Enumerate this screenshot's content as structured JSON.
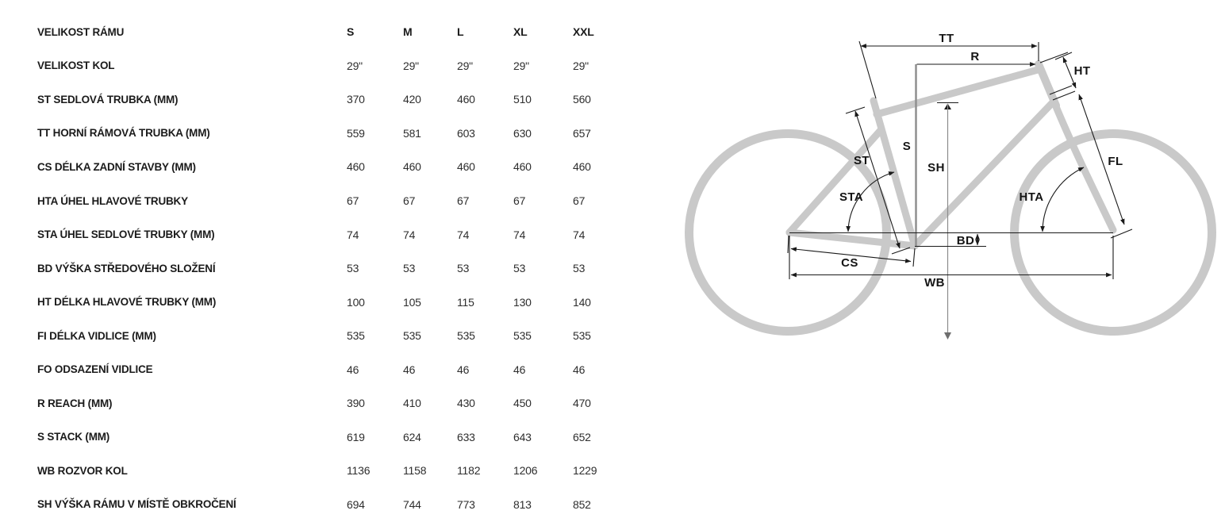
{
  "table": {
    "header_label": "VELIKOST RÁMU",
    "sizes": [
      "S",
      "M",
      "L",
      "XL",
      "XXL"
    ],
    "rows": [
      {
        "label": "VELIKOST KOL",
        "values": [
          "29\"",
          "29\"",
          "29\"",
          "29\"",
          "29\""
        ]
      },
      {
        "label": "ST SEDLOVÁ TRUBKA (MM)",
        "values": [
          "370",
          "420",
          "460",
          "510",
          "560"
        ]
      },
      {
        "label": "TT HORNÍ RÁMOVÁ TRUBKA (MM)",
        "values": [
          "559",
          "581",
          "603",
          "630",
          "657"
        ]
      },
      {
        "label": "CS DÉLKA ZADNÍ STAVBY (MM)",
        "values": [
          "460",
          "460",
          "460",
          "460",
          "460"
        ]
      },
      {
        "label": "HTA ÚHEL HLAVOVÉ TRUBKY",
        "values": [
          "67",
          "67",
          "67",
          "67",
          "67"
        ]
      },
      {
        "label": "STA ÚHEL SEDLOVÉ TRUBKY (MM)",
        "values": [
          "74",
          "74",
          "74",
          "74",
          "74"
        ]
      },
      {
        "label": "BD VÝŠKA STŘEDOVÉHO SLOŽENÍ",
        "values": [
          "53",
          "53",
          "53",
          "53",
          "53"
        ]
      },
      {
        "label": "HT DÉLKA HLAVOVÉ TRUBKY (MM)",
        "values": [
          "100",
          "105",
          "115",
          "130",
          "140"
        ]
      },
      {
        "label": "FI DÉLKA VIDLICE (MM)",
        "values": [
          "535",
          "535",
          "535",
          "535",
          "535"
        ]
      },
      {
        "label": "FO ODSAZENÍ VIDLICE",
        "values": [
          "46",
          "46",
          "46",
          "46",
          "46"
        ]
      },
      {
        "label": "R REACH (MM)",
        "values": [
          "390",
          "410",
          "430",
          "450",
          "470"
        ]
      },
      {
        "label": "S STACK (MM)",
        "values": [
          "619",
          "624",
          "633",
          "643",
          "652"
        ]
      },
      {
        "label": "WB ROZVOR KOL",
        "values": [
          "1136",
          "1158",
          "1182",
          "1206",
          "1229"
        ]
      },
      {
        "label": "SH VÝŠKA RÁMU V MÍSTĚ OBKROČENÍ",
        "values": [
          "694",
          "744",
          "773",
          "813",
          "852"
        ]
      }
    ]
  },
  "diagram": {
    "frame_color": "#c9c9c9",
    "dimension_line_color": "#1a1a1a",
    "stack_line_color": "#8f8f8f",
    "sh_line_color": "#8c8c8c",
    "labels": {
      "tt": "TT",
      "r": "R",
      "ht": "HT",
      "st": "ST",
      "s": "S",
      "sh": "SH",
      "sta": "STA",
      "hta": "HTA",
      "fl": "FL",
      "bd": "BD",
      "cs": "CS",
      "wb": "WB"
    }
  }
}
